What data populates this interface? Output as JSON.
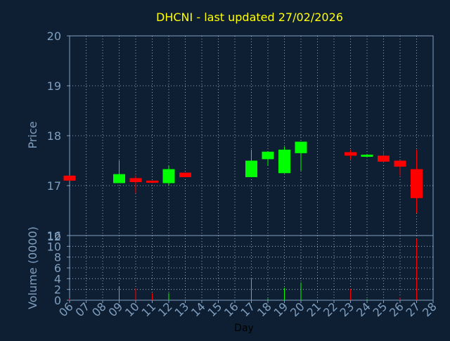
{
  "chart_data": [
    {
      "type": "candlestick",
      "title": "DHCNI - last updated 27/02/2026",
      "ylabel": "Price",
      "ylim": [
        16,
        20
      ],
      "yticks": [
        16,
        17,
        18,
        19,
        20
      ],
      "x_ticks": [
        "06",
        "07",
        "08",
        "09",
        "10",
        "11",
        "12",
        "13",
        "14",
        "15",
        "16",
        "17",
        "18",
        "19",
        "20",
        "21",
        "22",
        "23",
        "24",
        "25",
        "26",
        "27",
        "28"
      ],
      "grid": true,
      "candles": [
        {
          "day": "06",
          "open": 17.2,
          "high": 17.2,
          "low": 17.1,
          "close": 17.1
        },
        {
          "day": "09",
          "open": 17.05,
          "high": 17.5,
          "low": 17.05,
          "close": 17.23
        },
        {
          "day": "10",
          "open": 17.15,
          "high": 17.2,
          "low": 16.85,
          "close": 17.07
        },
        {
          "day": "11",
          "open": 17.1,
          "high": 17.1,
          "low": 17.05,
          "close": 17.08
        },
        {
          "day": "12",
          "open": 17.05,
          "high": 17.4,
          "low": 17.0,
          "close": 17.33
        },
        {
          "day": "13",
          "open": 17.26,
          "high": 17.26,
          "low": 17.17,
          "close": 17.17
        },
        {
          "day": "17",
          "open": 17.17,
          "high": 17.72,
          "low": 17.17,
          "close": 17.5
        },
        {
          "day": "18",
          "open": 17.53,
          "high": 17.68,
          "low": 17.4,
          "close": 17.68
        },
        {
          "day": "19",
          "open": 17.25,
          "high": 17.78,
          "low": 17.25,
          "close": 17.72
        },
        {
          "day": "20",
          "open": 17.65,
          "high": 17.88,
          "low": 17.3,
          "close": 17.88
        },
        {
          "day": "23",
          "open": 17.67,
          "high": 17.72,
          "low": 17.53,
          "close": 17.6
        },
        {
          "day": "24",
          "open": 17.6,
          "high": 17.63,
          "low": 17.57,
          "close": 17.62
        },
        {
          "day": "25",
          "open": 17.6,
          "high": 17.7,
          "low": 17.45,
          "close": 17.48
        },
        {
          "day": "26",
          "open": 17.5,
          "high": 17.5,
          "low": 17.2,
          "close": 17.38
        },
        {
          "day": "27",
          "open": 17.33,
          "high": 17.72,
          "low": 16.45,
          "close": 16.75
        }
      ],
      "colors": {
        "up": "#00ff00",
        "down": "#ff0000",
        "text": "#ffff00",
        "axis": "#7f9fbf",
        "grid": "#ffffff"
      }
    },
    {
      "type": "bar",
      "xlabel": "Day",
      "ylabel": "Volume (0000)",
      "ylim": [
        0,
        12
      ],
      "yticks": [
        0,
        2,
        4,
        6,
        8,
        10
      ],
      "y_top_label": "12",
      "x_ticks": [
        "06",
        "07",
        "08",
        "09",
        "10",
        "11",
        "12",
        "13",
        "14",
        "15",
        "16",
        "17",
        "18",
        "19",
        "20",
        "21",
        "22",
        "23",
        "24",
        "25",
        "26",
        "27",
        "28"
      ],
      "bars": [
        {
          "day": "06",
          "value": 0.3,
          "direction": "down"
        },
        {
          "day": "09",
          "value": 2.6,
          "direction": "up"
        },
        {
          "day": "10",
          "value": 2.2,
          "direction": "down"
        },
        {
          "day": "11",
          "value": 1.3,
          "direction": "down"
        },
        {
          "day": "12",
          "value": 1.3,
          "direction": "up"
        },
        {
          "day": "13",
          "value": 0.3,
          "direction": "down"
        },
        {
          "day": "17",
          "value": 4.0,
          "direction": "up"
        },
        {
          "day": "18",
          "value": 0.3,
          "direction": "up"
        },
        {
          "day": "19",
          "value": 2.3,
          "direction": "up"
        },
        {
          "day": "20",
          "value": 3.3,
          "direction": "up"
        },
        {
          "day": "23",
          "value": 2.1,
          "direction": "down"
        },
        {
          "day": "24",
          "value": 0.2,
          "direction": "up"
        },
        {
          "day": "25",
          "value": 0.2,
          "direction": "down"
        },
        {
          "day": "26",
          "value": 0.5,
          "direction": "down"
        },
        {
          "day": "27",
          "value": 11.4,
          "direction": "down"
        }
      ]
    }
  ]
}
